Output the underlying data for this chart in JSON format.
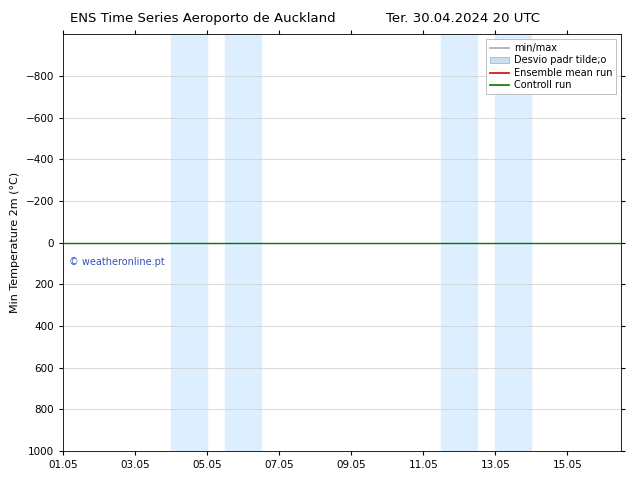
{
  "title_left": "ENS Time Series Aeroporto de Auckland",
  "title_right": "Ter. 30.04.2024 20 UTC",
  "ylabel": "Min Temperature 2m (°C)",
  "xlabel": "",
  "xlim": [
    0.0,
    15.5
  ],
  "ylim": [
    1000,
    -1000
  ],
  "yticks": [
    -800,
    -600,
    -400,
    -200,
    0,
    200,
    400,
    600,
    800,
    1000
  ],
  "xtick_labels": [
    "01.05",
    "03.05",
    "05.05",
    "07.05",
    "09.05",
    "11.05",
    "13.05",
    "15.05"
  ],
  "xtick_positions": [
    0,
    2,
    4,
    6,
    8,
    10,
    12,
    14
  ],
  "bg_color": "#ffffff",
  "plot_bg_color": "#ffffff",
  "grid_color": "#cccccc",
  "shade_bands": [
    {
      "xmin": 3.0,
      "xmax": 4.0,
      "color": "#ddeeff"
    },
    {
      "xmin": 4.5,
      "xmax": 5.5,
      "color": "#ddeeff"
    },
    {
      "xmin": 10.5,
      "xmax": 11.5,
      "color": "#ddeeff"
    },
    {
      "xmin": 12.0,
      "xmax": 13.0,
      "color": "#ddeeff"
    }
  ],
  "green_line_y": 0,
  "green_line_color": "#007700",
  "watermark_text": "© weatheronline.pt",
  "watermark_color": "#3355bb",
  "legend_items": [
    {
      "label": "min/max",
      "color": "#aaaaaa",
      "lw": 1.2,
      "ls": "-",
      "type": "line"
    },
    {
      "label": "Desvio padr tilde;o",
      "color": "#ccddf0",
      "lw": 6,
      "ls": "-",
      "type": "patch"
    },
    {
      "label": "Ensemble mean run",
      "color": "#dd0000",
      "lw": 1.2,
      "ls": "-",
      "type": "line"
    },
    {
      "label": "Controll run",
      "color": "#007700",
      "lw": 1.2,
      "ls": "-",
      "type": "line"
    }
  ],
  "title_fontsize": 9.5,
  "axis_fontsize": 8,
  "tick_fontsize": 7.5,
  "legend_fontsize": 7,
  "watermark_fontsize": 7
}
